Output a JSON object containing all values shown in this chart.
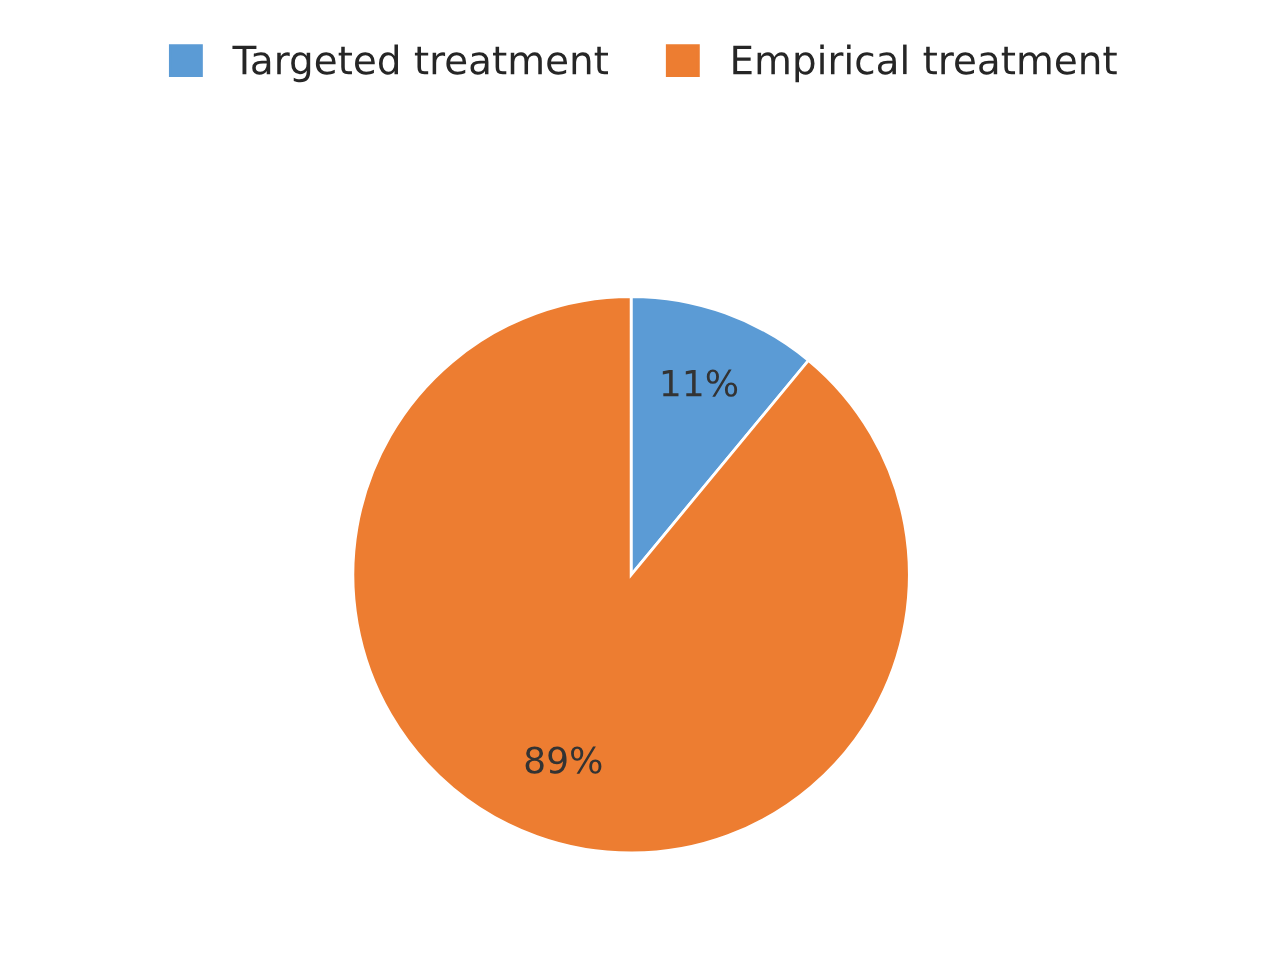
{
  "chart_data": {
    "type": "pie",
    "categories": [
      "Targeted treatment",
      "Empirical treatment"
    ],
    "values": [
      11,
      89
    ],
    "colors": [
      "#5b9bd5",
      "#ed7d31"
    ],
    "value_labels": [
      "11%",
      "89%"
    ],
    "legend": "top"
  }
}
